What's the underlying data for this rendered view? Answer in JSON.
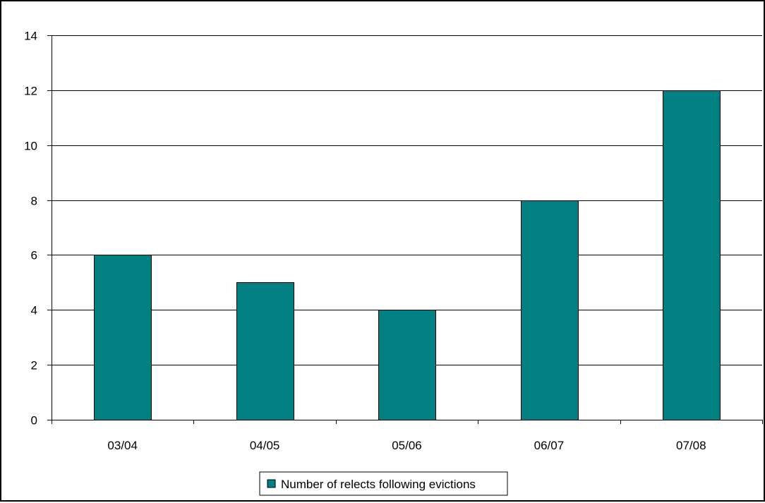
{
  "chart_data": {
    "type": "bar",
    "title": "",
    "xlabel": "",
    "ylabel": "",
    "categories": [
      "03/04",
      "04/05",
      "05/06",
      "06/07",
      "07/08"
    ],
    "series": [
      {
        "name": "Number of relects following evictions",
        "values": [
          6,
          5,
          4,
          8,
          12
        ],
        "color": "#008080"
      }
    ],
    "ylim": [
      0,
      14
    ],
    "yticks": [
      0,
      2,
      4,
      6,
      8,
      10,
      12,
      14
    ],
    "grid": "horizontal",
    "legend_position": "bottom-center"
  }
}
